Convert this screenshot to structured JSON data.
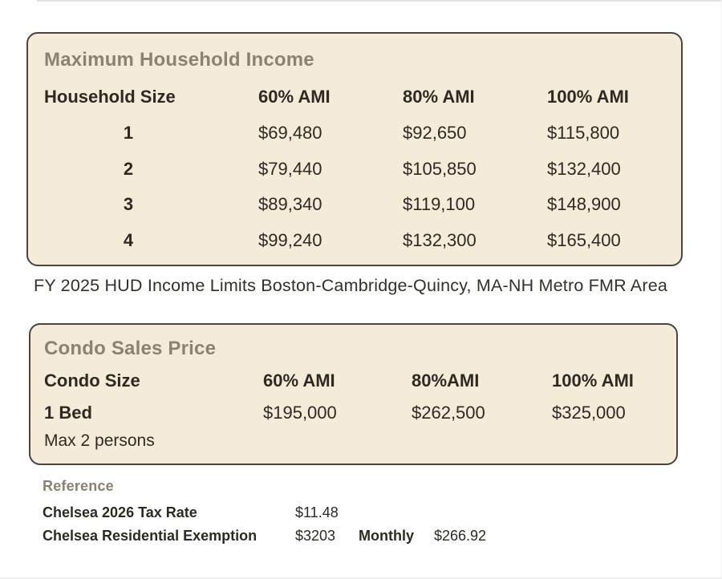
{
  "colors": {
    "panel_bg": "#f4ebd9",
    "panel_border": "#49443c",
    "title_gray": "#8b8372",
    "text_dark": "#2e2a23",
    "page_bg": "#ffffff"
  },
  "income_table": {
    "title": "Maximum Household Income",
    "columns": [
      "Household Size",
      "60% AMI",
      "80% AMI",
      "100% AMI"
    ],
    "rows": [
      {
        "size": "1",
        "ami60": "$69,480",
        "ami80": "$92,650",
        "ami100": "$115,800"
      },
      {
        "size": "2",
        "ami60": "$79,440",
        "ami80": "$105,850",
        "ami100": "$132,400"
      },
      {
        "size": "3",
        "ami60": "$89,340",
        "ami80": "$119,100",
        "ami100": "$148,900"
      },
      {
        "size": "4",
        "ami60": "$99,240",
        "ami80": "$132,300",
        "ami100": "$165,400"
      }
    ]
  },
  "caption": "FY 2025 HUD Income Limits Boston-Cambridge-Quincy, MA-NH Metro FMR Area",
  "condo_table": {
    "title": "Condo Sales Price",
    "columns": [
      "Condo Size",
      "60% AMI",
      "80%AMI",
      "100% AMI"
    ],
    "row": {
      "size": "1 Bed",
      "note": "Max 2 persons",
      "ami60": "$195,000",
      "ami80": "$262,500",
      "ami100": "$325,000"
    }
  },
  "reference": {
    "title": "Reference",
    "rows": [
      {
        "label": "Chelsea 2026 Tax Rate",
        "value": "$11.48",
        "extra_label": "",
        "extra_value": ""
      },
      {
        "label": "Chelsea Residential Exemption",
        "value": "$3203",
        "extra_label": "Monthly",
        "extra_value": "$266.92"
      }
    ]
  }
}
